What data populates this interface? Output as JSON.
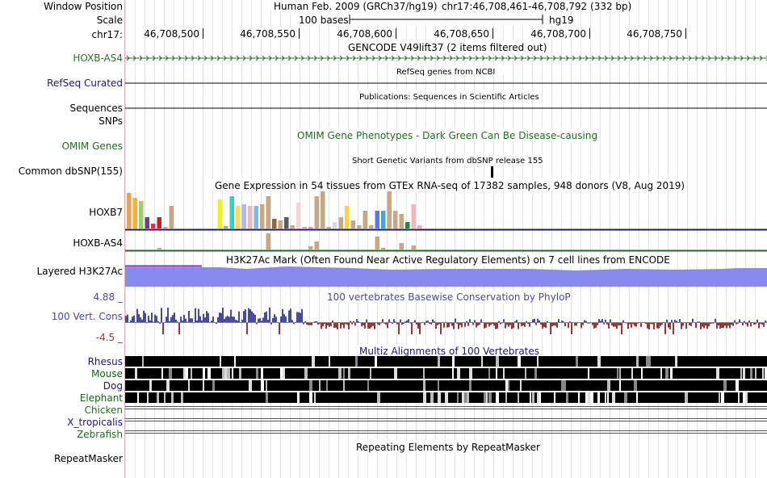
{
  "labels": {
    "window_position": "Window Position",
    "scale": "Scale",
    "chrom": "chr17:",
    "gencode_gene": "HOXB-AS4",
    "refseq": "RefSeq Curated",
    "sequences": "Sequences",
    "snps": "SNPs",
    "omim": "OMIM Genes",
    "dbsnp": "Common dbSNP(155)",
    "gtex_gene1": "HOXB7",
    "gtex_gene2": "HOXB-AS4",
    "h3k27ac": "Layered H3K27Ac",
    "cons_max": "4.88 _",
    "cons": "100 Vert. Cons",
    "cons_min": "-4.5 _",
    "species": [
      "Rhesus",
      "Mouse",
      "Dog",
      "Elephant",
      "Chicken",
      "X_tropicalis",
      "Zebrafish"
    ],
    "repeatmasker": "RepeatMasker"
  },
  "header": {
    "assembly": "Human Feb. 2009 (GRCh37/hg19)",
    "position": "chr17:46,708,461-46,708,792 (332 bp)",
    "scale_text": "100 bases",
    "db": "hg19",
    "ticks": [
      "46,708,500",
      "46,708,550",
      "46,708,600",
      "46,708,650",
      "46,708,700",
      "46,708,750"
    ]
  },
  "tracks": {
    "gencode_title": "GENCODE V49lift37 (2 items filtered out)",
    "refseq_title": "RefSeq genes from NCBI",
    "pubs_title": "Publications: Sequences in Scientific Articles",
    "omim_title": "OMIM Gene Phenotypes - Dark Green Can Be Disease-causing",
    "dbsnp_title": "Short Genetic Variants from dbSNP release 155",
    "gtex_title": "Gene Expression in 54 tissues from GTEx RNA-seq of 17382 samples, 948 donors (V8, Aug 2019)",
    "h3k27ac_title": "H3K27Ac Mark (Often Found Near Active Regulatory Elements) on 7 cell lines from ENCODE",
    "cons_title": "100 vertebrates Basewise Conservation by PhyloP",
    "multiz_title": "Multiz Alignments of 100 Vertebrates",
    "rmsk_title": "Repeating Elements by RepeatMasker"
  },
  "colors": {
    "gencode": "#2d6e2d",
    "refseq_label": "#1a1a70",
    "omim": "#1e6e1e",
    "cons": "#4a4a9a",
    "cons_neg": "#8e3a3a",
    "h3k27ac": "#8a8aee",
    "h3k27ac_top": "#8e1ec0",
    "gtex_axis": "#1a1a70",
    "gtex_axis2": "#1e6e1e",
    "mouse_label": "#136313"
  },
  "gtex_bars": [
    {
      "h": 44,
      "c": "#f2a14a"
    },
    {
      "h": 38,
      "c": "#f6b233"
    },
    {
      "h": 34,
      "c": "#9acd74"
    },
    {
      "h": 14,
      "c": "#7a3d7a"
    },
    {
      "h": 6,
      "c": "#e8304a"
    },
    {
      "h": 14,
      "c": "#cc1b24"
    },
    {
      "h": 2,
      "c": "#c8a882"
    },
    {
      "h": 28,
      "c": "#c8a882"
    },
    {
      "h": 0,
      "c": "#fff"
    },
    {
      "h": 0,
      "c": "#fff"
    },
    {
      "h": 0,
      "c": "#fff"
    },
    {
      "h": 0,
      "c": "#fff"
    },
    {
      "h": 0,
      "c": "#fff"
    },
    {
      "h": 0,
      "c": "#fff"
    },
    {
      "h": 0,
      "c": "#fff"
    },
    {
      "h": 36,
      "c": "#ebf02a"
    },
    {
      "h": 3,
      "c": "#c8a882"
    },
    {
      "h": 40,
      "c": "#2bd6c0"
    },
    {
      "h": 28,
      "c": "#ffd95a"
    },
    {
      "h": 30,
      "c": "#b3b8e6"
    },
    {
      "h": 28,
      "c": "#f5b6b6"
    },
    {
      "h": 28,
      "c": "#7bbbe6"
    },
    {
      "h": 30,
      "c": "#c8a882"
    },
    {
      "h": 40,
      "c": "#c8a882"
    },
    {
      "h": 12,
      "c": "#8a6a3a"
    },
    {
      "h": 10,
      "c": "#c8a882"
    },
    {
      "h": 14,
      "c": "#5a5a5a"
    },
    {
      "h": 4,
      "c": "#c8a882"
    },
    {
      "h": 32,
      "c": "#f0d6d6"
    },
    {
      "h": 2,
      "c": "#c0a0ff"
    },
    {
      "h": 2,
      "c": "#ff7fd6"
    },
    {
      "h": 40,
      "c": "#c8a882"
    },
    {
      "h": 46,
      "c": "#c8a882"
    },
    {
      "h": 2,
      "c": "#c8a882"
    },
    {
      "h": 8,
      "c": "#dadada"
    },
    {
      "h": 14,
      "c": "#c8a882"
    },
    {
      "h": 28,
      "c": "#ffd92a"
    },
    {
      "h": 10,
      "c": "#c8a882"
    },
    {
      "h": 4,
      "c": "#c8a882"
    },
    {
      "h": 22,
      "c": "#c8a882"
    },
    {
      "h": 4,
      "c": "#c8a882"
    },
    {
      "h": 22,
      "c": "#5b7be0"
    },
    {
      "h": 22,
      "c": "#4aa0e0"
    },
    {
      "h": 46,
      "c": "#c8a882"
    },
    {
      "h": 22,
      "c": "#c8a882"
    },
    {
      "h": 18,
      "c": "#c8a882"
    },
    {
      "h": 8,
      "c": "#1e8a3e"
    },
    {
      "h": 30,
      "c": "#f5b6b6"
    },
    {
      "h": 4,
      "c": "#ffa5a5"
    },
    {
      "h": 0,
      "c": "#fff"
    }
  ],
  "gtex2_bars": [
    {
      "i": 5,
      "h": 2
    },
    {
      "i": 23,
      "h": 20
    },
    {
      "i": 30,
      "h": 4
    },
    {
      "i": 31,
      "h": 10
    },
    {
      "i": 41,
      "h": 16
    },
    {
      "i": 42,
      "h": 2
    },
    {
      "i": 45,
      "h": 8
    },
    {
      "i": 47,
      "h": 5
    }
  ]
}
